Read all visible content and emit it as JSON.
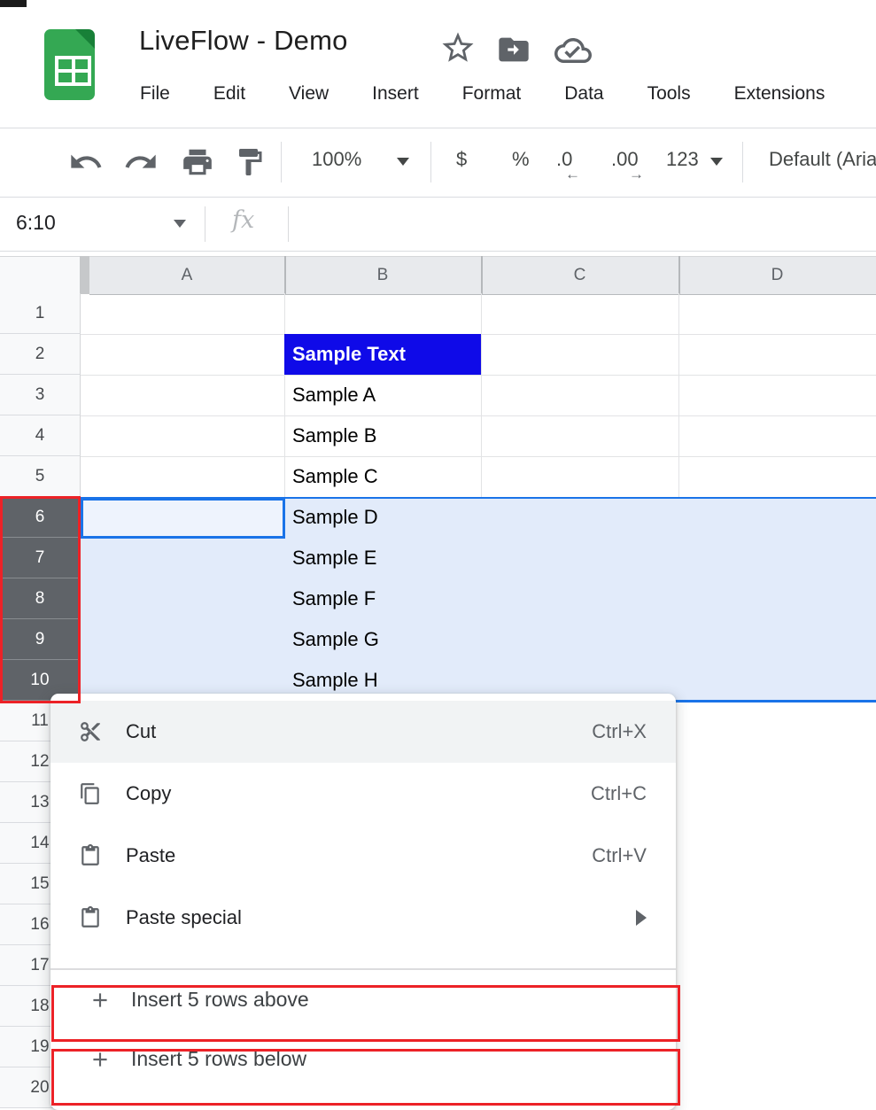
{
  "header": {
    "title": "LiveFlow - Demo",
    "logo": "google-sheets-logo",
    "title_icons": [
      "star-icon",
      "move-folder-icon",
      "cloud-check-icon"
    ],
    "menu_items": [
      "File",
      "Edit",
      "View",
      "Insert",
      "Format",
      "Data",
      "Tools",
      "Extensions"
    ]
  },
  "toolbar": {
    "zoom": "100%",
    "currency": "$",
    "percent": "%",
    "decrease_decimal": ".0",
    "decrease_decimal_arrow": "←",
    "increase_decimal": ".00",
    "increase_decimal_arrow": "→",
    "more_formats": "123",
    "font_name": "Default (Arial)"
  },
  "formula_bar": {
    "name_box": "6:10",
    "fx": "fx",
    "formula_value": ""
  },
  "grid": {
    "column_headers": [
      "A",
      "B",
      "C",
      "D"
    ],
    "row_numbers": [
      "1",
      "2",
      "3",
      "4",
      "5",
      "6",
      "7",
      "8",
      "9",
      "10",
      "11",
      "12",
      "13",
      "14",
      "15",
      "16",
      "17",
      "18",
      "19",
      "20"
    ],
    "selected_rows": [
      6,
      7,
      8,
      9,
      10
    ],
    "active_cell": "A6",
    "cells": [
      {
        "ref": "B2",
        "text": "Sample Text",
        "style": "highlight"
      },
      {
        "ref": "B3",
        "text": "Sample A"
      },
      {
        "ref": "B4",
        "text": "Sample B"
      },
      {
        "ref": "B5",
        "text": "Sample C"
      },
      {
        "ref": "B6",
        "text": "Sample D"
      },
      {
        "ref": "B7",
        "text": "Sample E"
      },
      {
        "ref": "B8",
        "text": "Sample F"
      },
      {
        "ref": "B9",
        "text": "Sample G"
      },
      {
        "ref": "B10",
        "text": "Sample H"
      }
    ]
  },
  "context_menu": {
    "items": [
      {
        "label": "Cut",
        "shortcut": "Ctrl+X",
        "icon": "scissors-icon",
        "highlighted": true
      },
      {
        "label": "Copy",
        "shortcut": "Ctrl+C",
        "icon": "copy-icon",
        "highlighted": false
      },
      {
        "label": "Paste",
        "shortcut": "Ctrl+V",
        "icon": "clipboard-icon",
        "highlighted": false
      },
      {
        "label": "Paste special",
        "shortcut": "",
        "icon": "clipboard-icon",
        "submenu": true,
        "highlighted": false
      }
    ],
    "insert_items": [
      {
        "label": "Insert 5 rows above",
        "icon": "plus-icon",
        "annotated": true
      },
      {
        "label": "Insert 5 rows below",
        "icon": "plus-icon",
        "annotated": true
      }
    ]
  },
  "annotations": {
    "color": "#ec2227",
    "boxes": [
      "selected-row-headers-6-10",
      "insert-5-rows-above-item",
      "insert-5-rows-below-item"
    ]
  },
  "colors": {
    "accent_blue": "#1a73e8",
    "selection_tint": "#e2ebfa",
    "active_cell_fill": "#eef3fd",
    "highlight_cell_blue": "#0f0ae8",
    "selected_row_header": "#5f6368",
    "column_header_bg": "#e8eaed",
    "row_header_bg": "#f8f9fa",
    "sheets_green": "#34a853",
    "sheets_green_dark": "#188038",
    "menu_hover": "#f1f3f4",
    "annotation_red": "#ec2227"
  }
}
